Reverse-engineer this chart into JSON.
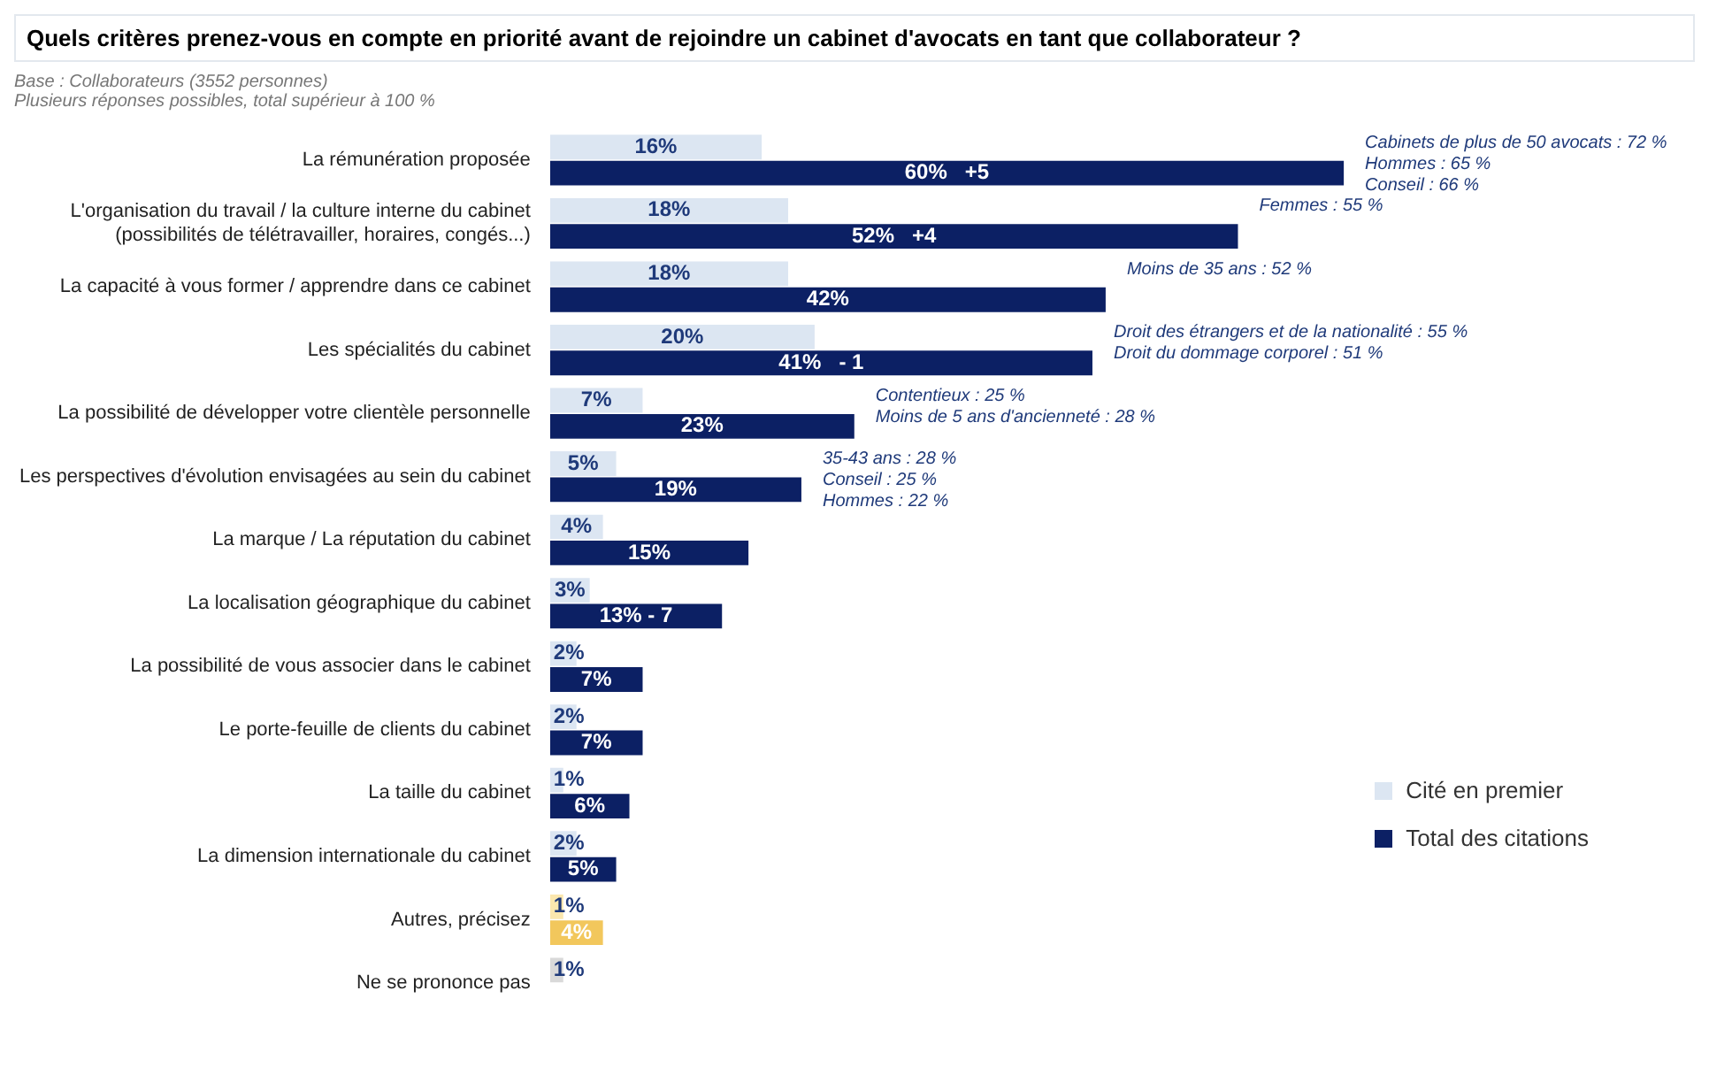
{
  "chart_data": {
    "type": "bar",
    "orientation": "horizontal",
    "title": "Quels critères prenez-vous en compte en priorité avant de rejoindre un cabinet d'avocats en tant que collaborateur ?",
    "subtitle": "Base : Collaborateurs (3552 personnes)\nPlusieurs réponses possibles, total supérieur à 100 %",
    "categories": [
      "La rémunération proposée",
      "L'organisation du travail / la culture interne du cabinet (possibilités de télétravailler, horaires, congés...)",
      "La capacité à vous former / apprendre dans ce cabinet",
      "Les spécialités du cabinet",
      "La possibilité de développer votre clientèle personnelle",
      "Les perspectives d'évolution envisagées au sein du cabinet",
      "La marque / La réputation du cabinet",
      "La localisation géographique du cabinet",
      "La possibilité de vous associer dans le cabinet",
      "Le porte-feuille de clients du cabinet",
      "La taille du cabinet",
      "La dimension internationale du cabinet",
      "Autres, précisez",
      "Ne se prononce pas"
    ],
    "series": [
      {
        "name": "Cité en premier",
        "color": "#dce6f2",
        "colors": [
          "#dce6f2",
          "#dce6f2",
          "#dce6f2",
          "#dce6f2",
          "#dce6f2",
          "#dce6f2",
          "#dce6f2",
          "#dce6f2",
          "#dce6f2",
          "#dce6f2",
          "#dce6f2",
          "#dce6f2",
          "#fbe7ae",
          "#d9d9d9"
        ],
        "values": [
          16,
          18,
          18,
          20,
          7,
          5,
          4,
          3,
          2,
          2,
          1,
          2,
          1,
          1
        ],
        "value_labels": [
          "16%",
          "18%",
          "18%",
          "20%",
          "7%",
          "5%",
          "4%",
          "3%",
          "2%",
          "2%",
          "1%",
          "2%",
          "1%",
          "1%"
        ]
      },
      {
        "name": "Total des citations",
        "color": "#0c2064",
        "colors": [
          "#0c2064",
          "#0c2064",
          "#0c2064",
          "#0c2064",
          "#0c2064",
          "#0c2064",
          "#0c2064",
          "#0c2064",
          "#0c2064",
          "#0c2064",
          "#0c2064",
          "#0c2064",
          "#f2c75c",
          "#0c2064"
        ],
        "values": [
          60,
          52,
          42,
          41,
          23,
          19,
          15,
          13,
          7,
          7,
          6,
          5,
          4,
          null
        ],
        "value_labels": [
          "60%   +5",
          "52%   +4",
          "42%",
          "41%   - 1",
          "23%",
          "19%",
          "15%",
          "13% - 7",
          "7%",
          "7%",
          "6%",
          "5%",
          "4%",
          null
        ]
      }
    ],
    "annotations": [
      {
        "text": "Cabinets de plus de 50 avocats : 72 %\nHommes : 65 %\nConseil : 66 %",
        "x": 60,
        "y": "La rémunération proposée"
      },
      {
        "text": "Femmes : 55 %",
        "x": 52,
        "y": "L'organisation du travail / la culture interne du cabinet (possibilités de télétravailler, horaires, congés...)"
      },
      {
        "text": "Moins de 35 ans : 52 %",
        "x": 42,
        "y": "La capacité à vous former / apprendre dans ce cabinet"
      },
      {
        "text": "Droit des étrangers et de la nationalité : 55 %\nDroit du dommage corporel : 51 %",
        "x": 41,
        "y": "Les spécialités du cabinet"
      },
      {
        "text": "Contentieux : 25 %\nMoins de 5 ans d'ancienneté : 28 %",
        "x": 23,
        "y": "La possibilité de développer votre clientèle personnelle"
      },
      {
        "text": "35-43 ans : 28 %\nConseil : 25 %\nHommes : 22 %",
        "x": 19,
        "y": "Les perspectives d'évolution envisagées au sein du cabinet"
      }
    ],
    "legend": "bottom right",
    "grid": false
  }
}
